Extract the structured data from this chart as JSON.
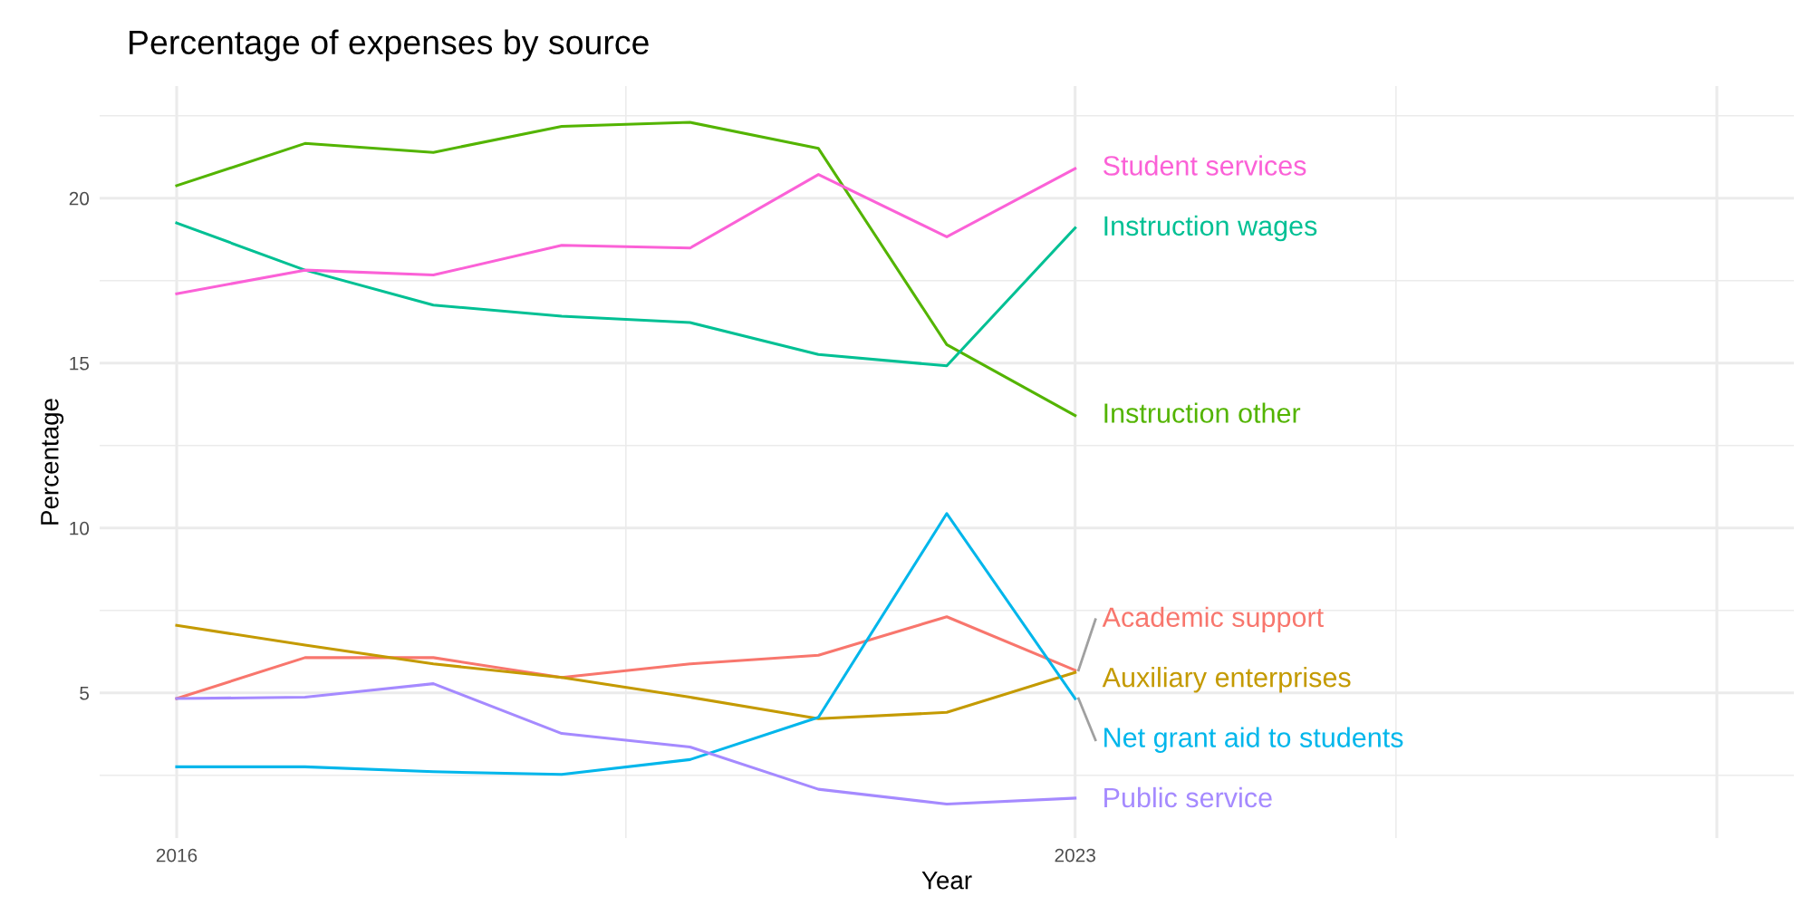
{
  "chart_data": {
    "type": "line",
    "title": "Percentage of expenses by source",
    "xlabel": "Year",
    "ylabel": "Percentage",
    "x": [
      2016,
      2017,
      2018,
      2019,
      2020,
      2021,
      2022,
      2023
    ],
    "series": [
      {
        "name": "Academic support",
        "color": "#f8766d",
        "values": [
          4.83,
          6.07,
          6.07,
          5.47,
          5.88,
          6.14,
          7.31,
          5.69
        ]
      },
      {
        "name": "Auxiliary enterprises",
        "color": "#c49a00",
        "values": [
          7.05,
          6.45,
          5.88,
          5.47,
          4.87,
          4.22,
          4.41,
          5.62
        ]
      },
      {
        "name": "Instruction other",
        "color": "#53b400",
        "values": [
          20.38,
          21.66,
          21.39,
          22.18,
          22.3,
          21.51,
          15.56,
          13.41
        ]
      },
      {
        "name": "Instruction wages",
        "color": "#00c094",
        "values": [
          19.25,
          17.82,
          16.76,
          16.42,
          16.23,
          15.26,
          14.92,
          19.1
        ]
      },
      {
        "name": "Net grant aid to students",
        "color": "#00b6eb",
        "values": [
          2.76,
          2.76,
          2.61,
          2.53,
          2.98,
          4.26,
          10.44,
          4.83
        ]
      },
      {
        "name": "Public service",
        "color": "#a58aff",
        "values": [
          4.83,
          4.87,
          5.28,
          3.77,
          3.36,
          2.08,
          1.63,
          1.81
        ]
      },
      {
        "name": "Student services",
        "color": "#fb61d7",
        "values": [
          17.1,
          17.82,
          17.67,
          18.57,
          18.49,
          20.72,
          18.83,
          20.9
        ]
      }
    ],
    "xlim": [
      2015.4,
      2028.6
    ],
    "ylim": [
      0.6,
      23.4
    ],
    "xticks": [
      2016,
      2023,
      {
        "value": 2028,
        "label": null
      }
    ],
    "yticks": [
      5,
      10,
      15,
      20
    ],
    "grid": true,
    "legend": false,
    "marker": "none",
    "line_style": "solid"
  }
}
